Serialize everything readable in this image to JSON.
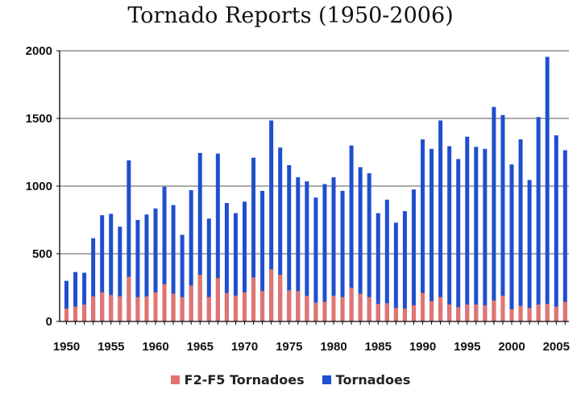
{
  "colors": {
    "total": "#1f4fce",
    "severe": "#e3736f",
    "grid": "#555555",
    "axis": "#000000"
  },
  "chart_data": {
    "type": "bar",
    "title": "Tornado Reports (1950-2006)",
    "xlabel": "",
    "ylabel": "",
    "ylim": [
      0,
      2000
    ],
    "yticks": [
      0,
      500,
      1000,
      1500,
      2000
    ],
    "xticks": [
      1950,
      1955,
      1960,
      1965,
      1970,
      1975,
      1980,
      1985,
      1990,
      1995,
      2000,
      2005
    ],
    "grid": true,
    "legend_position": "bottom",
    "x": [
      1950,
      1951,
      1952,
      1953,
      1954,
      1955,
      1956,
      1957,
      1958,
      1959,
      1960,
      1961,
      1962,
      1963,
      1964,
      1965,
      1966,
      1967,
      1968,
      1969,
      1970,
      1971,
      1972,
      1973,
      1974,
      1975,
      1976,
      1977,
      1978,
      1979,
      1980,
      1981,
      1982,
      1983,
      1984,
      1985,
      1986,
      1987,
      1988,
      1989,
      1990,
      1991,
      1992,
      1993,
      1994,
      1995,
      1996,
      1997,
      1998,
      1999,
      2000,
      2001,
      2002,
      2003,
      2004,
      2005,
      2006
    ],
    "series": [
      {
        "name": "Tornadoes",
        "values": [
          300,
          365,
          360,
          615,
          785,
          795,
          700,
          1190,
          750,
          790,
          835,
          995,
          860,
          640,
          970,
          1245,
          760,
          1240,
          875,
          800,
          885,
          1210,
          965,
          1485,
          1285,
          1155,
          1065,
          1035,
          915,
          1015,
          1065,
          965,
          1300,
          1140,
          1095,
          800,
          900,
          730,
          815,
          975,
          1345,
          1275,
          1485,
          1295,
          1200,
          1365,
          1290,
          1275,
          1585,
          1525,
          1160,
          1345,
          1045,
          1510,
          1955,
          1375,
          1265
        ]
      },
      {
        "name": "F2-F5 Tornadoes",
        "values": [
          95,
          110,
          125,
          185,
          215,
          195,
          185,
          330,
          180,
          185,
          215,
          275,
          205,
          180,
          265,
          345,
          180,
          320,
          210,
          190,
          215,
          325,
          225,
          385,
          345,
          230,
          225,
          190,
          140,
          145,
          190,
          180,
          250,
          205,
          180,
          130,
          135,
          100,
          95,
          120,
          210,
          150,
          180,
          125,
          105,
          125,
          125,
          120,
          155,
          190,
          90,
          115,
          100,
          125,
          130,
          110,
          145
        ]
      }
    ]
  },
  "legend": {
    "item1": "F2-F5 Tornadoes",
    "item2": "Tornadoes"
  }
}
